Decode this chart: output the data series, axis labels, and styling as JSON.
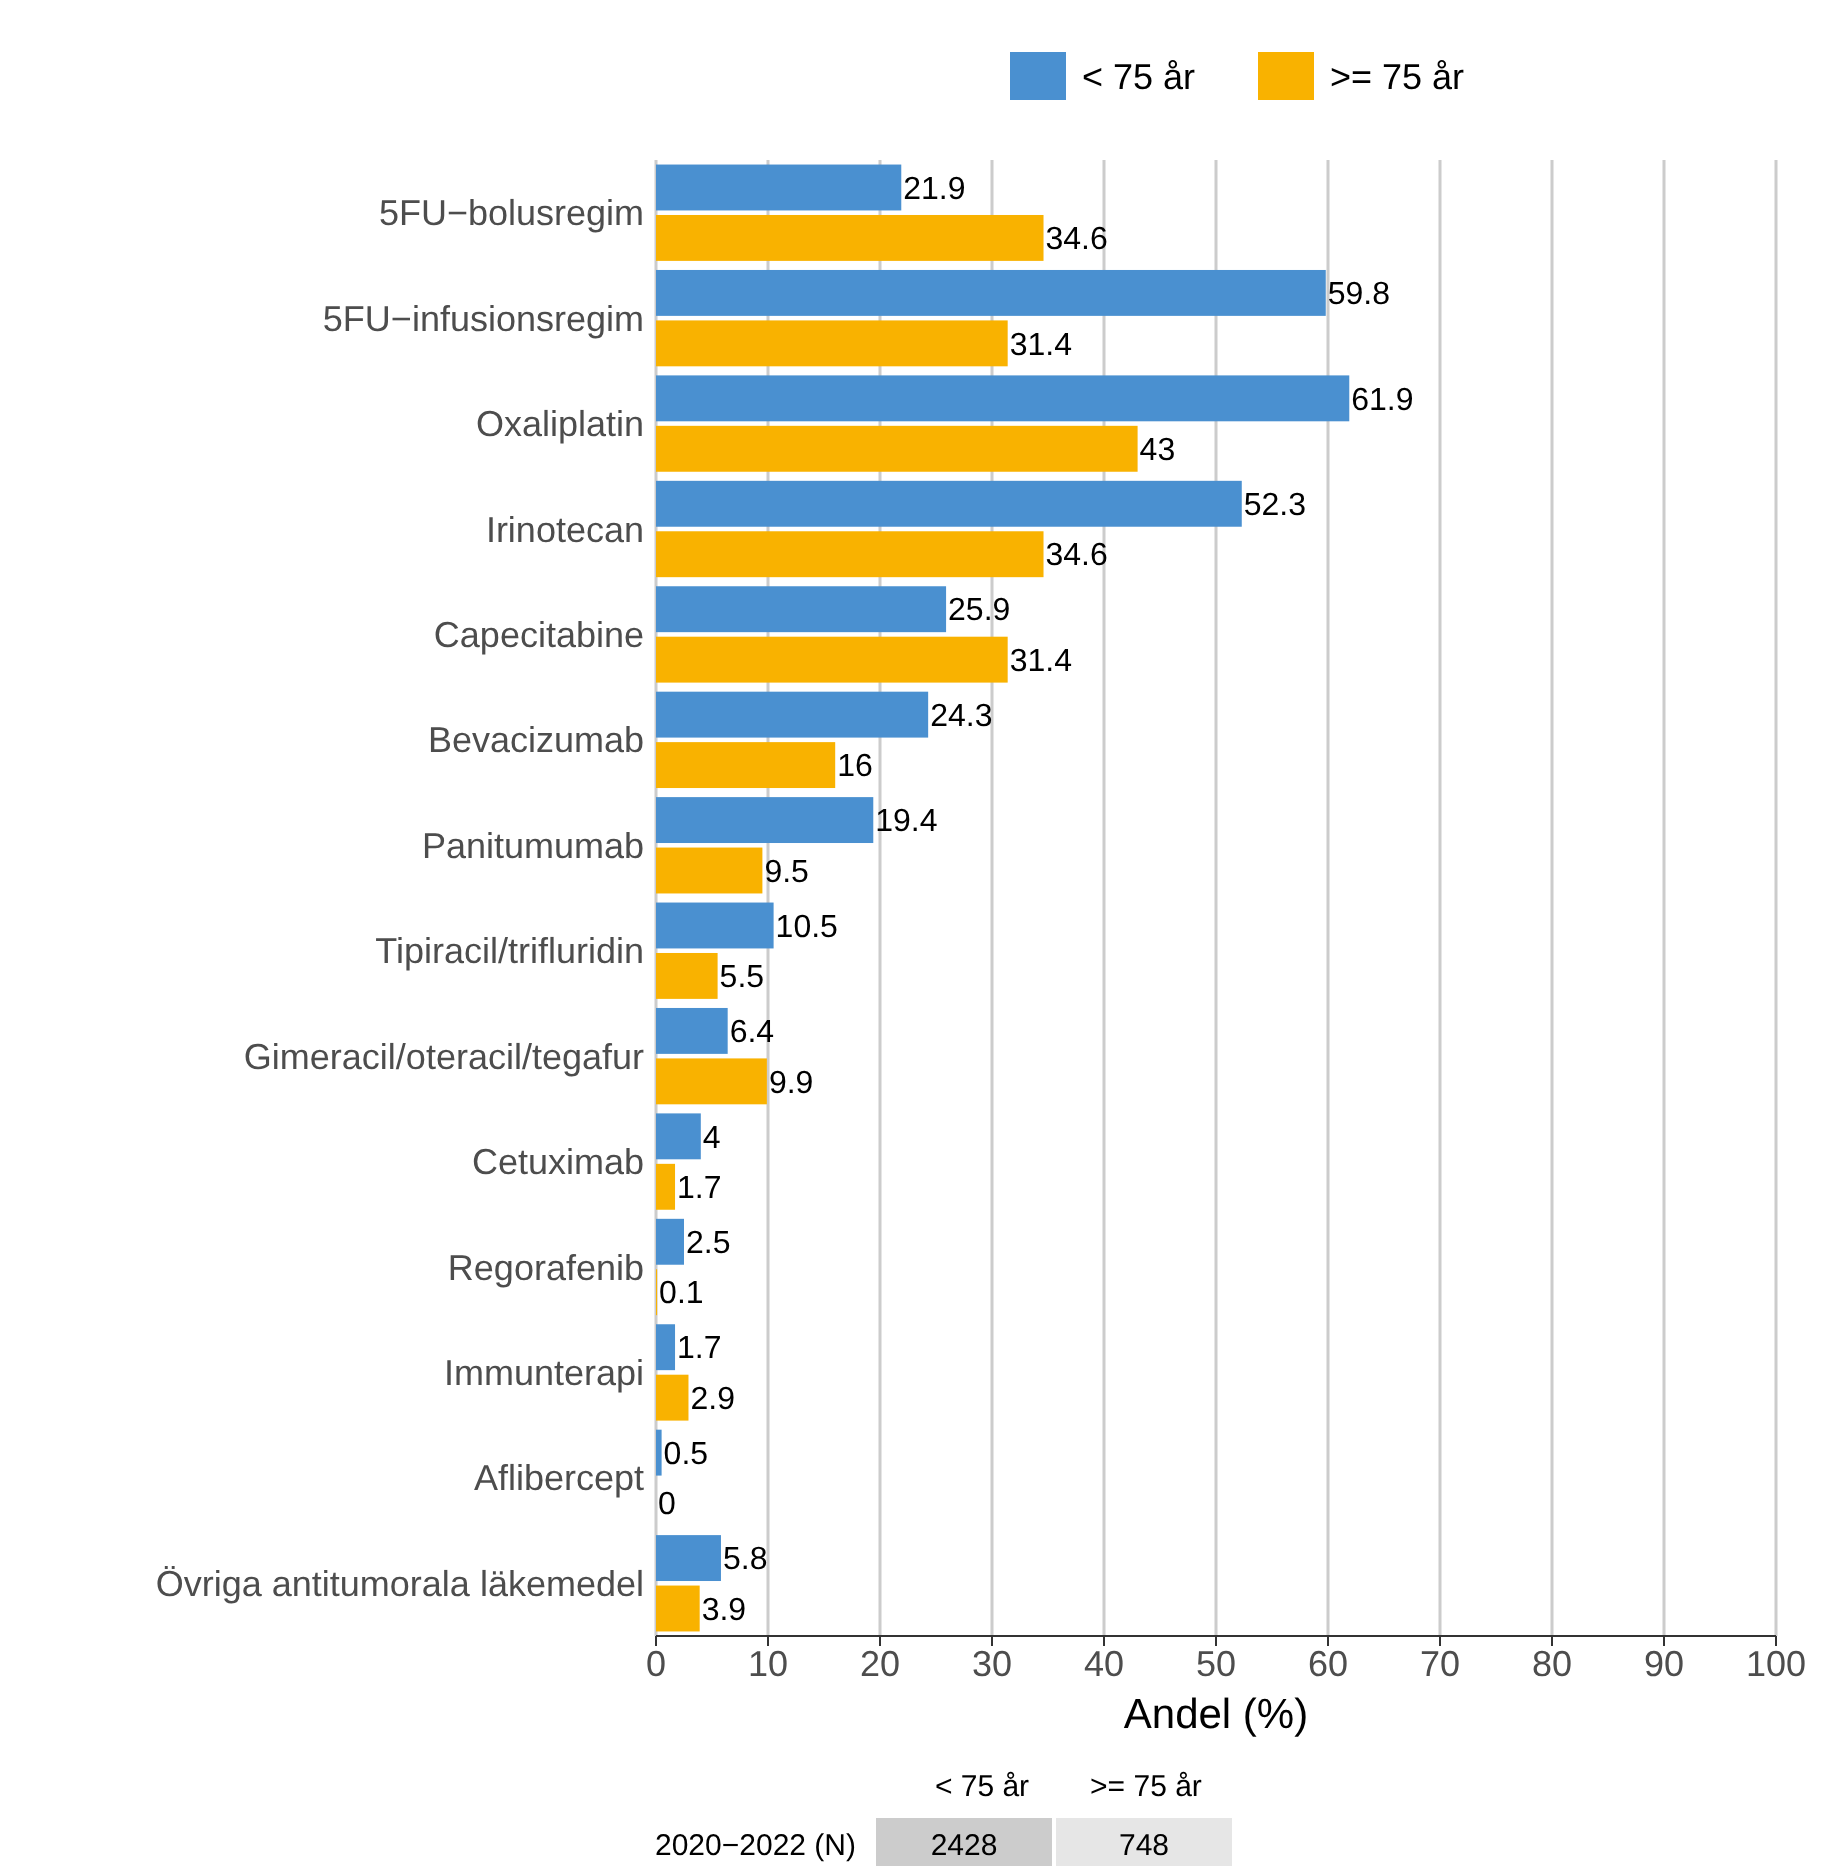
{
  "chart_data": {
    "type": "bar",
    "orientation": "horizontal",
    "xlabel": "Andel (%)",
    "categories": [
      "5FU−bolusregim",
      "5FU−infusionsregim",
      "Oxaliplatin",
      "Irinotecan",
      "Capecitabine",
      "Bevacizumab",
      "Panitumumab",
      "Tipiracil/trifluridin",
      "Gimeracil/oteracil/tegafur",
      "Cetuximab",
      "Regorafenib",
      "Immunterapi",
      "Aflibercept",
      "Övriga antitumorala läkemedel"
    ],
    "series": [
      {
        "name": "< 75 år",
        "color": "#4a90d0",
        "values": [
          21.9,
          59.8,
          61.9,
          52.3,
          25.9,
          24.3,
          19.4,
          10.5,
          6.4,
          4,
          2.5,
          1.7,
          0.5,
          5.8
        ]
      },
      {
        "name": ">= 75 år",
        "color": "#f9b200",
        "values": [
          34.6,
          31.4,
          43,
          34.6,
          31.4,
          16,
          9.5,
          5.5,
          9.9,
          1.7,
          0.1,
          2.9,
          0,
          3.9
        ]
      }
    ],
    "xlim": [
      0,
      100
    ],
    "xticks": [
      0,
      10,
      20,
      30,
      40,
      50,
      60,
      70,
      80,
      90,
      100
    ],
    "grid": "x",
    "legend": "top right",
    "data_labels": true,
    "annotations": [
      "< 75 år",
      ">= 75 år",
      "2020−2022 (N)",
      "2428",
      "748"
    ]
  }
}
